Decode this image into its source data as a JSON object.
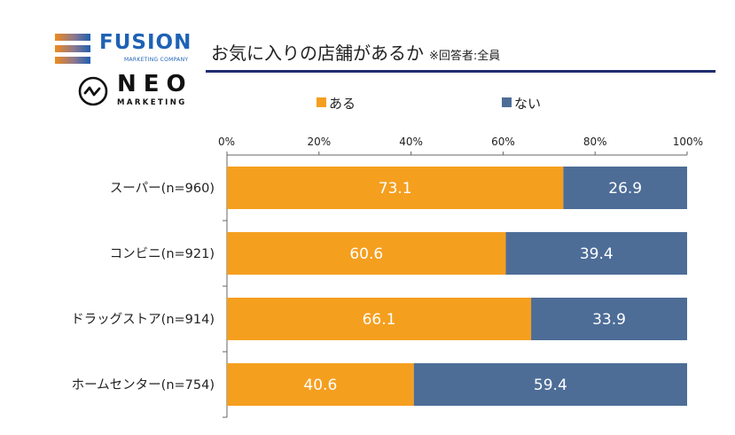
{
  "logos": {
    "fusion": {
      "name": "FUSION",
      "subtitle": "MARKETING COMPANY",
      "color": "#1e62b5"
    },
    "neo": {
      "name": "NEO",
      "subtitle": "MARKETING",
      "color": "#111111"
    }
  },
  "header": {
    "title": "お気に入りの店舗があるか",
    "note": "※回答者:全員",
    "rule_color": "#1f2d6e"
  },
  "chart_data": {
    "type": "bar",
    "orientation": "horizontal",
    "stacked": true,
    "title": "お気に入りの店舗があるか",
    "xlabel": "",
    "ylabel": "",
    "xlim": [
      0,
      100
    ],
    "xticks": [
      "0%",
      "20%",
      "40%",
      "60%",
      "80%",
      "100%"
    ],
    "grid": false,
    "legend_position": "top",
    "categories": [
      "スーパー(n=960)",
      "コンビニ(n=921)",
      "ドラッグストア(n=914)",
      "ホームセンター(n=754)"
    ],
    "series": [
      {
        "name": "ある",
        "color": "#f59f1f",
        "values": [
          73.1,
          60.6,
          66.1,
          40.6
        ]
      },
      {
        "name": "ない",
        "color": "#4d6d97",
        "values": [
          26.9,
          39.4,
          33.9,
          59.4
        ]
      }
    ]
  }
}
